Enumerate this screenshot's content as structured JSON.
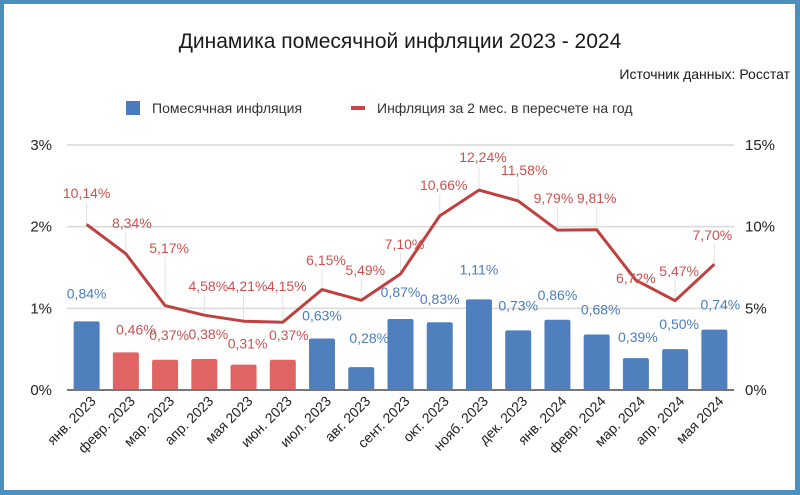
{
  "title": "Динамика помесячной инфляции 2023 - 2024",
  "source": "Источник данных: Росстат",
  "legend": [
    {
      "label": "Помесячная инфляция",
      "color": "#4a7dbf",
      "shape": "square"
    },
    {
      "label": "Инфляция за 2 мес. в пересчете на год",
      "color": "#c84848",
      "shape": "line"
    }
  ],
  "colors": {
    "bar_blue": "#4f80bd",
    "bar_red": "#e06464",
    "line": "#c04040",
    "label_blue": "#4a7dbf",
    "label_red": "#d05050",
    "grid": "#d9d9d9",
    "frame": "#4a8fbd"
  },
  "chart_data": {
    "type": "bar+line",
    "title": "Динамика помесячной инфляции 2023 - 2024",
    "subtitle": "Источник данных: Росстат",
    "categories": [
      "янв. 2023",
      "февр. 2023",
      "мар. 2023",
      "апр. 2023",
      "мая 2023",
      "июн. 2023",
      "июл. 2023",
      "авг. 2023",
      "сент. 2023",
      "окт. 2023",
      "нояб. 2023",
      "дек. 2023",
      "янв. 2024",
      "февр. 2024",
      "мар. 2024",
      "апр. 2024",
      "мая 2024"
    ],
    "series": [
      {
        "name": "Помесячная инфляция",
        "type": "bar",
        "axis": "left",
        "values": [
          0.84,
          0.46,
          0.37,
          0.38,
          0.31,
          0.37,
          0.63,
          0.28,
          0.87,
          0.83,
          1.11,
          0.73,
          0.86,
          0.68,
          0.39,
          0.5,
          0.74
        ],
        "labels": [
          "0,84%",
          "0,46%",
          "0,37%",
          "0,38%",
          "0,31%",
          "0,37%",
          "0,63%",
          "0,28%",
          "0,87%",
          "0,83%",
          "1,11%",
          "0,73%",
          "0,86%",
          "0,68%",
          "0,39%",
          "0,50%",
          "0,74%"
        ],
        "highlighted_red": [
          1,
          2,
          3,
          4,
          5
        ]
      },
      {
        "name": "Инфляция за 2 мес. в пересчете на год",
        "type": "line",
        "axis": "right",
        "values": [
          10.14,
          8.34,
          5.17,
          4.58,
          4.21,
          4.15,
          6.15,
          5.49,
          7.1,
          10.66,
          12.24,
          11.58,
          9.79,
          9.81,
          6.72,
          5.47,
          7.7
        ],
        "labels": [
          "10,14%",
          "8,34%",
          "5,17%",
          "4,58%",
          "4,21%",
          "4,15%",
          "6,15%",
          "5,49%",
          "7,10%",
          "10,66%",
          "12,24%",
          "11,58%",
          "9,79%",
          "9,81%",
          "6,72%",
          "5,47%",
          "7,70%"
        ]
      }
    ],
    "y_left": {
      "ticks": [
        "0%",
        "1%",
        "2%",
        "3%"
      ],
      "range": [
        0,
        3
      ]
    },
    "y_right": {
      "ticks": [
        "0%",
        "5%",
        "10%",
        "15%"
      ],
      "range": [
        0,
        15
      ]
    },
    "grid": true,
    "legend_position": "top"
  }
}
